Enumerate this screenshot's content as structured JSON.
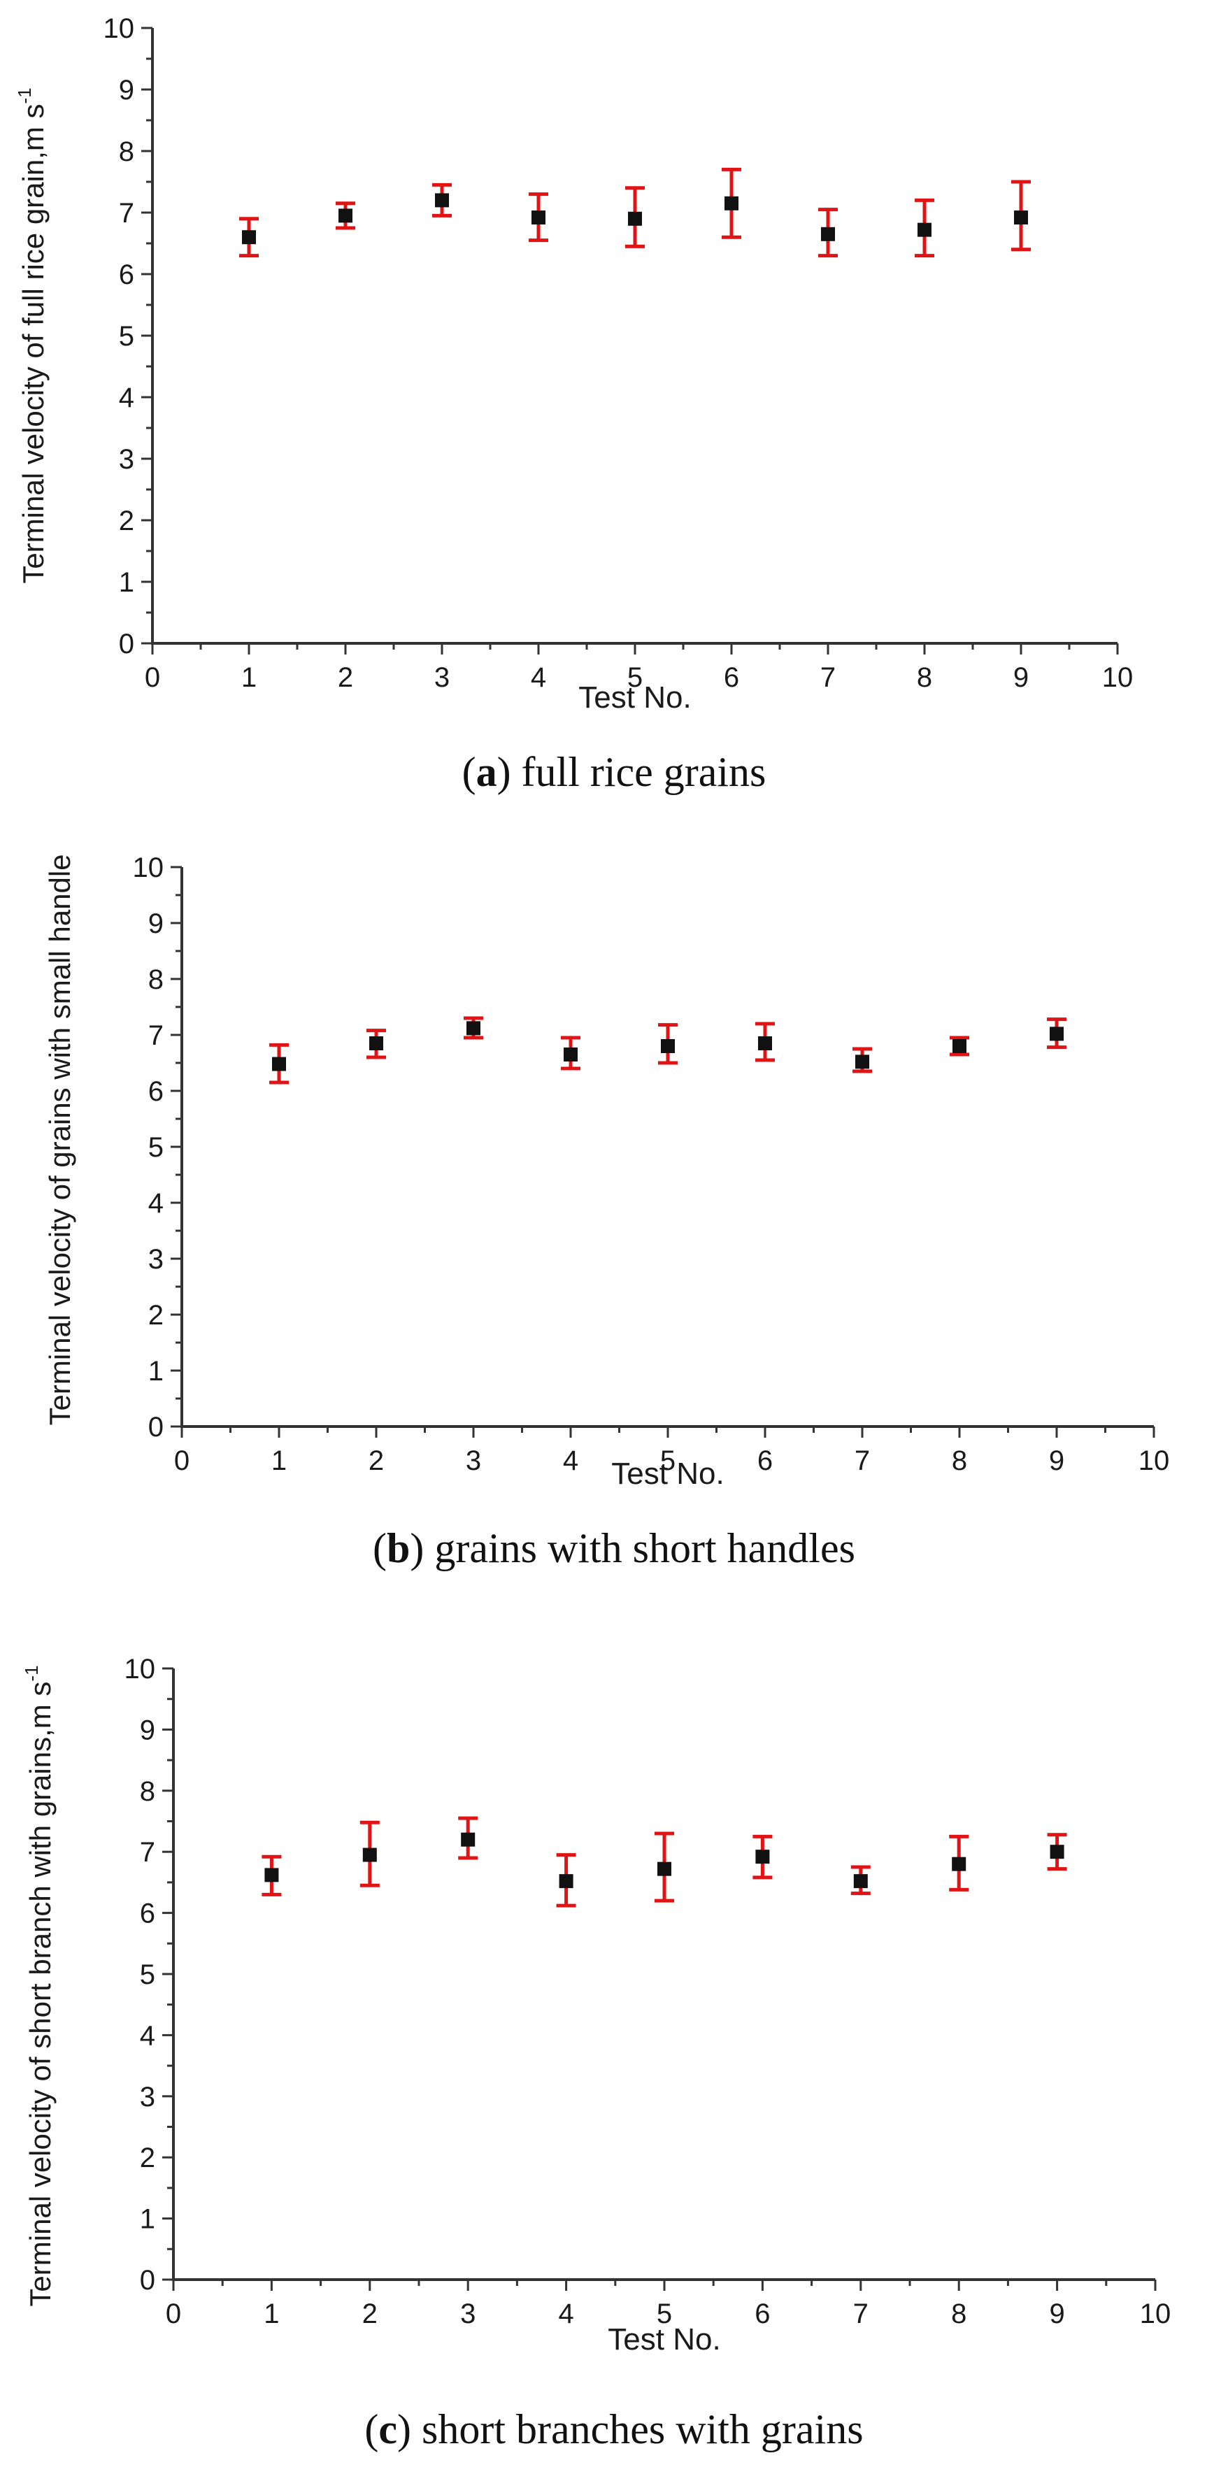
{
  "chart_data": [
    {
      "type": "scatter",
      "ylabel": "Terminal velocity of full rice grain,m s",
      "ylabel_sup": "-1",
      "xlabel": "Test No.",
      "caption_letter": "a",
      "caption_text": "full rice grains",
      "xlim": [
        0,
        10
      ],
      "ylim": [
        0,
        10
      ],
      "x_ticks": [
        "0",
        "1",
        "2",
        "3",
        "4",
        "5",
        "6",
        "7",
        "8",
        "9",
        "10"
      ],
      "y_ticks": [
        "0",
        "1",
        "2",
        "3",
        "4",
        "5",
        "6",
        "7",
        "8",
        "9",
        "10"
      ],
      "x": [
        1,
        2,
        3,
        4,
        5,
        6,
        7,
        8,
        9
      ],
      "y": [
        6.6,
        6.95,
        7.2,
        6.92,
        6.9,
        7.15,
        6.65,
        6.72,
        6.92
      ],
      "err_low": [
        6.3,
        6.75,
        6.95,
        6.55,
        6.45,
        6.6,
        6.3,
        6.3,
        6.4
      ],
      "err_high": [
        6.9,
        7.15,
        7.45,
        7.3,
        7.4,
        7.7,
        7.05,
        7.2,
        7.5
      ],
      "marker_color": "#111111",
      "error_color": "#e01414"
    },
    {
      "type": "scatter",
      "ylabel": "Terminal velocity of grains with small handle",
      "ylabel_sup": "",
      "xlabel": "Test No.",
      "caption_letter": "b",
      "caption_text": "grains with short handles",
      "xlim": [
        0,
        10
      ],
      "ylim": [
        0,
        10
      ],
      "x_ticks": [
        "0",
        "1",
        "2",
        "3",
        "4",
        "5",
        "6",
        "7",
        "8",
        "9",
        "10"
      ],
      "y_ticks": [
        "0",
        "1",
        "2",
        "3",
        "4",
        "5",
        "6",
        "7",
        "8",
        "9",
        "10"
      ],
      "x": [
        1,
        2,
        3,
        4,
        5,
        6,
        7,
        8,
        9
      ],
      "y": [
        6.48,
        6.85,
        7.12,
        6.65,
        6.8,
        6.85,
        6.52,
        6.8,
        7.02
      ],
      "err_low": [
        6.15,
        6.6,
        6.95,
        6.4,
        6.5,
        6.55,
        6.35,
        6.65,
        6.78
      ],
      "err_high": [
        6.82,
        7.08,
        7.3,
        6.95,
        7.18,
        7.2,
        6.75,
        6.95,
        7.28
      ],
      "marker_color": "#111111",
      "error_color": "#e01414"
    },
    {
      "type": "scatter",
      "ylabel": "Terminal velocity of  short branch with grains,m s",
      "ylabel_sup": "-1",
      "xlabel": "Test No.",
      "caption_letter": "c",
      "caption_text": "short branches with grains",
      "xlim": [
        0,
        10
      ],
      "ylim": [
        0,
        10
      ],
      "x_ticks": [
        "0",
        "1",
        "2",
        "3",
        "4",
        "5",
        "6",
        "7",
        "8",
        "9",
        "10"
      ],
      "y_ticks": [
        "0",
        "1",
        "2",
        "3",
        "4",
        "5",
        "6",
        "7",
        "8",
        "9",
        "10"
      ],
      "x": [
        1,
        2,
        3,
        4,
        5,
        6,
        7,
        8,
        9
      ],
      "y": [
        6.62,
        6.95,
        7.2,
        6.52,
        6.72,
        6.92,
        6.52,
        6.8,
        7.0
      ],
      "err_low": [
        6.3,
        6.45,
        6.9,
        6.12,
        6.2,
        6.58,
        6.32,
        6.38,
        6.72
      ],
      "err_high": [
        6.92,
        7.48,
        7.55,
        6.95,
        7.3,
        7.25,
        6.75,
        7.25,
        7.28
      ],
      "marker_color": "#111111",
      "error_color": "#e01414"
    }
  ]
}
